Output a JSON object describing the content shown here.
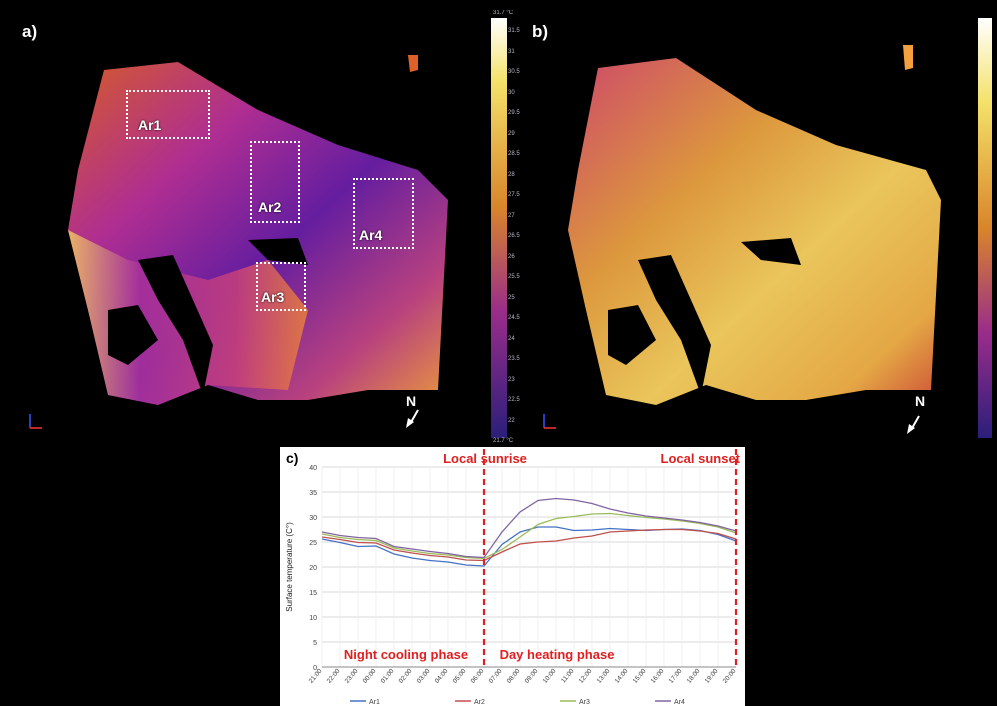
{
  "panels": [
    {
      "letter": "a)",
      "north": "N",
      "areas": [
        {
          "label": "Ar1"
        },
        {
          "label": "Ar2"
        },
        {
          "label": "Ar3"
        },
        {
          "label": "Ar4"
        }
      ],
      "scale_top": "31.7 °C",
      "scale_ticks": [
        "31.5",
        "31",
        "30.5",
        "30",
        "29.5",
        "29",
        "28.5",
        "28",
        "27.5",
        "27",
        "26.5",
        "26",
        "25.5",
        "25",
        "24.5",
        "24",
        "23.5",
        "23",
        "22.5",
        "22"
      ],
      "scale_bottom": "21.7 °C"
    },
    {
      "letter": "b)",
      "north": "N"
    }
  ],
  "chart_panel_label": "c)",
  "chart_data": {
    "type": "line",
    "title": "",
    "xlabel": "",
    "ylabel": "Surface temperature (C°)",
    "ylim": [
      0,
      40
    ],
    "yticks": [
      0,
      5,
      10,
      15,
      20,
      25,
      30,
      35,
      40
    ],
    "grid": true,
    "legend_position": "bottom",
    "x": [
      "21:00",
      "22:00",
      "23:00",
      "00:00",
      "01:00",
      "02:00",
      "03:00",
      "04:00",
      "05:00",
      "06:00",
      "07:00",
      "08:00",
      "09:00",
      "10:00",
      "11:00",
      "12:00",
      "13:00",
      "14:00",
      "15:00",
      "16:00",
      "17:00",
      "18:00",
      "19:00",
      "20:00"
    ],
    "series": [
      {
        "name": "Ar1",
        "color": "#4472c4",
        "values": [
          25.6,
          24.9,
          24.1,
          24.2,
          22.6,
          21.8,
          21.3,
          21.0,
          20.4,
          20.2,
          24.5,
          27.0,
          28.0,
          28.0,
          27.3,
          27.4,
          27.7,
          27.5,
          27.3,
          27.5,
          27.6,
          27.3,
          26.5,
          25.2
        ]
      },
      {
        "name": "Ar2",
        "color": "#c0504d",
        "values": [
          26.0,
          25.5,
          24.9,
          24.8,
          23.4,
          22.8,
          22.3,
          22.0,
          21.4,
          21.3,
          23.0,
          24.6,
          25.0,
          25.2,
          25.8,
          26.2,
          27.0,
          27.2,
          27.4,
          27.5,
          27.5,
          27.2,
          26.7,
          25.6
        ]
      },
      {
        "name": "Ar3",
        "color": "#9bbb59",
        "values": [
          26.6,
          25.9,
          25.5,
          25.3,
          23.8,
          23.2,
          22.7,
          22.4,
          21.9,
          21.7,
          23.5,
          26.0,
          28.5,
          29.7,
          30.1,
          30.6,
          30.7,
          30.3,
          29.9,
          29.6,
          29.2,
          28.7,
          28.0,
          26.8
        ]
      },
      {
        "name": "Ar4",
        "color": "#8064a2",
        "values": [
          27.0,
          26.3,
          25.9,
          25.7,
          24.1,
          23.6,
          23.1,
          22.7,
          22.1,
          21.9,
          27.0,
          31.0,
          33.3,
          33.7,
          33.4,
          32.7,
          31.6,
          30.8,
          30.2,
          29.8,
          29.4,
          28.9,
          28.2,
          27.2
        ]
      }
    ],
    "annotations": {
      "sunrise": {
        "label": "Local sunrise",
        "x": "06:00"
      },
      "sunset": {
        "label": "Local sunset",
        "x": "20:00"
      },
      "night_phase": "Night cooling phase",
      "day_phase": "Day heating phase"
    },
    "annotation_color": "#e02020"
  }
}
